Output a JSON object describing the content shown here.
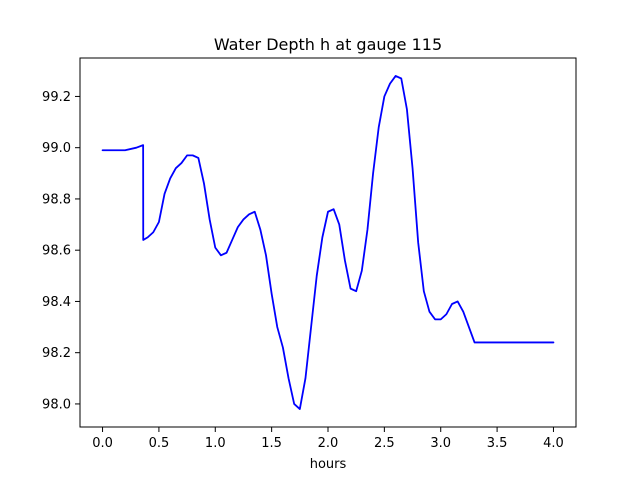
{
  "chart_data": {
    "type": "line",
    "title": "Water Depth h at gauge 115",
    "xlabel": "hours",
    "ylabel": "",
    "xlim": [
      -0.2,
      4.2
    ],
    "ylim": [
      97.91,
      99.35
    ],
    "xticks": [
      0.0,
      0.5,
      1.0,
      1.5,
      2.0,
      2.5,
      3.0,
      3.5,
      4.0
    ],
    "xtick_labels": [
      "0.0",
      "0.5",
      "1.0",
      "1.5",
      "2.0",
      "2.5",
      "3.0",
      "3.5",
      "4.0"
    ],
    "yticks": [
      98.0,
      98.2,
      98.4,
      98.6,
      98.8,
      99.0,
      99.2
    ],
    "ytick_labels": [
      "98.0",
      "98.2",
      "98.4",
      "98.6",
      "98.8",
      "99.0",
      "99.2"
    ],
    "grid": false,
    "series": [
      {
        "name": "",
        "color": "#0000ff",
        "x": [
          0.0,
          0.1,
          0.2,
          0.3,
          0.36,
          0.361,
          0.4,
          0.45,
          0.5,
          0.55,
          0.6,
          0.65,
          0.7,
          0.75,
          0.8,
          0.85,
          0.9,
          0.95,
          1.0,
          1.05,
          1.1,
          1.15,
          1.2,
          1.25,
          1.3,
          1.35,
          1.4,
          1.45,
          1.5,
          1.55,
          1.6,
          1.65,
          1.7,
          1.75,
          1.8,
          1.85,
          1.9,
          1.95,
          2.0,
          2.05,
          2.1,
          2.15,
          2.2,
          2.25,
          2.3,
          2.35,
          2.4,
          2.45,
          2.5,
          2.55,
          2.6,
          2.65,
          2.7,
          2.75,
          2.8,
          2.85,
          2.9,
          2.95,
          3.0,
          3.05,
          3.1,
          3.15,
          3.2,
          3.25,
          3.3,
          3.35,
          3.4,
          3.45,
          3.5,
          3.55,
          3.6,
          3.65,
          3.7,
          3.75,
          3.8,
          3.85,
          3.9,
          3.95,
          4.0
        ],
        "y": [
          98.99,
          98.99,
          98.99,
          99.0,
          99.01,
          98.64,
          98.65,
          98.67,
          98.71,
          98.82,
          98.88,
          98.92,
          98.94,
          98.97,
          98.97,
          98.96,
          98.86,
          98.72,
          98.61,
          98.58,
          98.59,
          98.64,
          98.69,
          98.72,
          98.74,
          98.75,
          98.68,
          98.58,
          98.43,
          98.3,
          98.22,
          98.1,
          98.0,
          97.98,
          98.1,
          98.3,
          98.5,
          98.65,
          98.75,
          98.76,
          98.7,
          98.56,
          98.45,
          98.44,
          98.52,
          98.68,
          98.9,
          99.08,
          99.2,
          99.25,
          99.28,
          99.27,
          99.15,
          98.92,
          98.63,
          98.44,
          98.36,
          98.33,
          98.33,
          98.35,
          98.39,
          98.4,
          98.36,
          98.3,
          98.24,
          98.24,
          98.24,
          98.24,
          98.24,
          98.24,
          98.24,
          98.24,
          98.24,
          98.24,
          98.24,
          98.24,
          98.24,
          98.24,
          98.24
        ]
      }
    ]
  }
}
